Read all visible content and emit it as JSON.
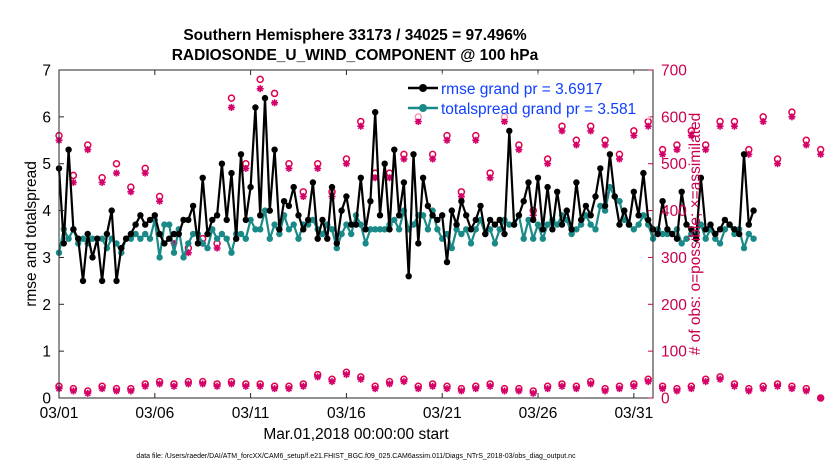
{
  "chart_data": {
    "type": "line",
    "title": [
      "Southern Hemisphere 33173 / 34025 = 97.496%",
      "RADIOSONDE_U_WIND_COMPONENT @ 100 hPa"
    ],
    "xlabel": "Mar.01,2018 00:00:00 start",
    "ylabel": "rmse and totalspread",
    "ylabel_right": "# of obs: o=possible; ×=assimilated",
    "footnote": "data file: /Users/raeder/DAI/ATM_forcXX/CAM6_setup/f.e21.FHIST_BGC.f09_025.CAM6assim.011/Diags_NTrS_2018-03/obs_diag_output.nc",
    "xlim": [
      0,
      31
    ],
    "ylim": [
      0,
      7
    ],
    "ylim_right": [
      0,
      700
    ],
    "xticks": [
      0,
      5,
      10,
      15,
      20,
      25,
      30
    ],
    "xtick_labels": [
      "03/01",
      "03/06",
      "03/11",
      "03/16",
      "03/21",
      "03/26",
      "03/31"
    ],
    "yticks": [
      0,
      1,
      2,
      3,
      4,
      5,
      6,
      7
    ],
    "ytick_labels": [
      "0",
      "1",
      "2",
      "3",
      "4",
      "5",
      "6",
      "7"
    ],
    "yticks_right": [
      0,
      100,
      200,
      300,
      400,
      500,
      600,
      700
    ],
    "ytick_labels_right": [
      "0",
      "100",
      "200",
      "300",
      "400",
      "500",
      "600",
      "700"
    ],
    "time_step_days": 0.25,
    "series": [
      {
        "name": "rmse",
        "legend": "rmse grand pr = 3.6917",
        "color": "#000000",
        "values": [
          4.9,
          3.3,
          5.3,
          3.6,
          3.4,
          2.5,
          3.5,
          3.0,
          3.4,
          2.5,
          3.5,
          4.0,
          2.5,
          3.2,
          3.4,
          3.5,
          3.7,
          3.9,
          3.7,
          3.8,
          3.9,
          3.5,
          3.3,
          3.4,
          3.5,
          3.5,
          3.8,
          3.8,
          4.1,
          3.3,
          4.7,
          3.5,
          3.8,
          3.9,
          5.0,
          3.8,
          4.8,
          3.4,
          5.2,
          3.8,
          4.5,
          6.2,
          3.9,
          6.4,
          4.0,
          5.3,
          3.6,
          4.2,
          4.1,
          4.5,
          3.9,
          3.6,
          3.8,
          4.6,
          3.4,
          3.8,
          3.4,
          4.5,
          3.3,
          4.0,
          4.3,
          3.7,
          3.7,
          4.7,
          3.6,
          4.2,
          6.1,
          3.9,
          5.0,
          3.6,
          5.3,
          3.9,
          4.6,
          2.6,
          5.2,
          3.3,
          4.7,
          4.1,
          3.9,
          3.8,
          3.9,
          2.9,
          4.0,
          3.7,
          4.2,
          3.9,
          3.6,
          3.8,
          4.1,
          3.5,
          3.8,
          3.7,
          3.8,
          3.5,
          5.7,
          3.7,
          3.9,
          4.2,
          4.6,
          3.8,
          4.7,
          3.6,
          4.5,
          3.6,
          4.4,
          3.7,
          4.0,
          3.6,
          4.6,
          3.8,
          4.1,
          3.9,
          4.3,
          4.9,
          4.1,
          5.2,
          4.3,
          3.7,
          4.0,
          3.7,
          4.4,
          3.9,
          4.8,
          3.8,
          3.6,
          3.5,
          4.2,
          3.6,
          3.5,
          3.4,
          4.4,
          3.7,
          3.6,
          3.4,
          4.7,
          3.6,
          3.7,
          3.5,
          3.6,
          3.8,
          3.7,
          3.6,
          3.5,
          5.2,
          3.7,
          4.0
        ]
      },
      {
        "name": "totalspread",
        "legend": "totalspread grand pr = 3.581",
        "color": "#1a8a88",
        "values": [
          3.1,
          3.6,
          3.4,
          3.6,
          3.3,
          3.4,
          3.3,
          3.4,
          3.4,
          3.4,
          3.2,
          3.4,
          3.3,
          3.1,
          3.4,
          3.4,
          3.5,
          3.4,
          3.5,
          3.4,
          3.8,
          3.0,
          3.7,
          3.7,
          3.1,
          3.6,
          3.0,
          3.3,
          3.5,
          3.5,
          3.3,
          3.2,
          3.6,
          3.4,
          3.5,
          3.4,
          3.1,
          3.5,
          3.5,
          3.4,
          3.8,
          3.6,
          3.6,
          4.0,
          3.4,
          3.7,
          3.5,
          3.9,
          3.6,
          3.7,
          3.4,
          3.7,
          3.7,
          3.8,
          3.6,
          3.5,
          3.7,
          3.6,
          3.2,
          3.5,
          3.7,
          3.5,
          3.9,
          3.7,
          3.3,
          3.6,
          3.6,
          3.6,
          3.6,
          3.7,
          3.8,
          3.6,
          4.0,
          3.6,
          3.7,
          3.9,
          3.9,
          3.6,
          4.0,
          3.6,
          3.4,
          3.5,
          3.2,
          3.6,
          3.5,
          3.6,
          3.3,
          3.6,
          3.8,
          3.5,
          3.6,
          3.3,
          3.6,
          3.8,
          3.7,
          3.7,
          3.9,
          3.4,
          3.8,
          3.4,
          3.7,
          3.4,
          3.7,
          3.8,
          3.7,
          3.9,
          3.8,
          3.5,
          3.6,
          3.7,
          3.9,
          3.7,
          3.6,
          4.1,
          4.0,
          4.5,
          4.3,
          4.2,
          3.8,
          3.7,
          3.6,
          3.7,
          3.9,
          3.7,
          3.4,
          3.6,
          3.5,
          3.5,
          3.5,
          3.6,
          3.3,
          3.4,
          3.5,
          3.5,
          3.7,
          3.4,
          3.6,
          3.4,
          3.3,
          3.6,
          3.7,
          3.5,
          3.6,
          3.2,
          3.5,
          3.4
        ]
      }
    ],
    "obs_points_every_n_steps": 3,
    "obs_possible": [
      560,
      475,
      540,
      470,
      500,
      450,
      490,
      430,
      340,
      320,
      340,
      330,
      640,
      500,
      680,
      650,
      500,
      440,
      500,
      440,
      510,
      590,
      480,
      480,
      520,
      600,
      520,
      560,
      440,
      560,
      480,
      600,
      540,
      400,
      510,
      580,
      550,
      580,
      550,
      520,
      570,
      590,
      530,
      540,
      570,
      540,
      590,
      590,
      530,
      600,
      510,
      610,
      550,
      530
    ],
    "obs_assimilated": [
      550,
      460,
      530,
      460,
      480,
      440,
      480,
      420,
      330,
      310,
      330,
      320,
      620,
      490,
      660,
      630,
      490,
      430,
      490,
      430,
      500,
      580,
      470,
      470,
      510,
      590,
      510,
      550,
      430,
      550,
      470,
      590,
      530,
      390,
      500,
      570,
      540,
      570,
      540,
      510,
      560,
      580,
      520,
      530,
      560,
      530,
      580,
      580,
      520,
      590,
      500,
      600,
      540,
      520
    ],
    "obs_possible_low": [
      25,
      20,
      15,
      25,
      20,
      20,
      30,
      35,
      30,
      35,
      35,
      30,
      35,
      30,
      30,
      25,
      25,
      30,
      50,
      40,
      55,
      45,
      25,
      35,
      40,
      25,
      30,
      25,
      20,
      25,
      30,
      20,
      20,
      15,
      25,
      30,
      25,
      35,
      20,
      25,
      30,
      40,
      25,
      20,
      25,
      40,
      45,
      30,
      20,
      25,
      30,
      25,
      20,
      0
    ],
    "obs_assimilated_low": [
      20,
      15,
      10,
      20,
      15,
      15,
      25,
      30,
      25,
      30,
      30,
      25,
      30,
      25,
      25,
      20,
      20,
      25,
      45,
      35,
      50,
      40,
      20,
      30,
      35,
      20,
      25,
      20,
      15,
      20,
      25,
      15,
      15,
      10,
      20,
      25,
      20,
      30,
      15,
      20,
      25,
      35,
      20,
      15,
      20,
      35,
      40,
      25,
      15,
      20,
      25,
      20,
      15,
      0
    ],
    "possible_color": "#e0004d",
    "assimilated_color": "#d4006a"
  }
}
